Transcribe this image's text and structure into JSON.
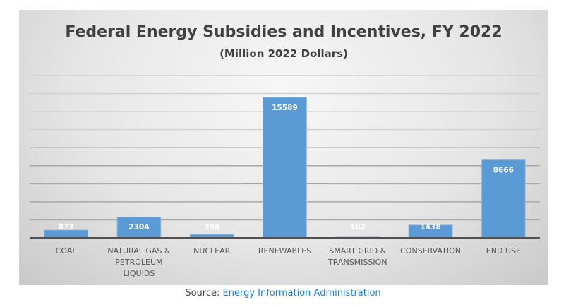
{
  "chart_data": {
    "type": "bar",
    "title": "Federal Energy Subsidies and Incentives, FY 2022",
    "subtitle": "(Million 2022 Dollars)",
    "xlabel": "",
    "ylabel": "",
    "categories": [
      [
        "COAL"
      ],
      [
        "NATURAL GAS &",
        "PETROLEUM",
        "LIQUIDS"
      ],
      [
        "NUCLEAR"
      ],
      [
        "RENEWABLES"
      ],
      [
        "SMART GRID &",
        "TRANSMISSION"
      ],
      [
        "CONSERVATION"
      ],
      [
        "END USE"
      ]
    ],
    "values": [
      873,
      2304,
      390,
      15589,
      102,
      1438,
      8666
    ],
    "data_labels": [
      "873",
      "2304",
      "390",
      "15589",
      "102",
      "1438",
      "8666"
    ],
    "ylim": [
      0,
      18000
    ],
    "ytick_step": 2000,
    "y_axis_labels_visible": false,
    "grid": true,
    "legend": "none",
    "bar_color": "#5b9bd5",
    "label_color": "#ffffff"
  },
  "source": {
    "prefix": "Source: ",
    "link_text": "Energy Information Administration",
    "link_color": "#1a7fd4"
  }
}
